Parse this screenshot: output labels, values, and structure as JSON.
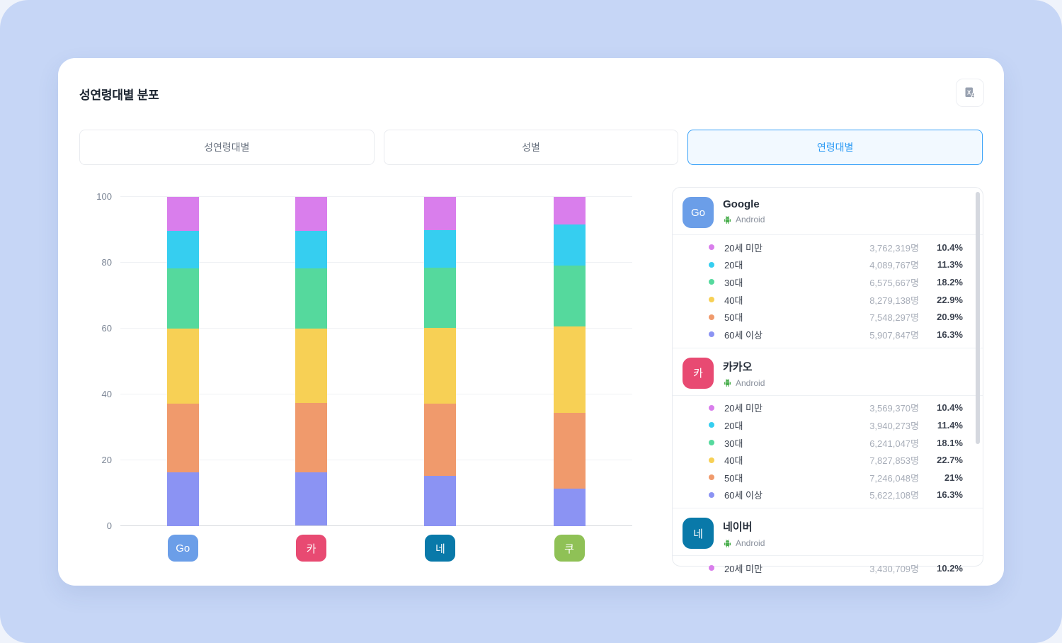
{
  "page": {
    "title": "성연령대별 분포"
  },
  "toolbar": {
    "export_icon": "excel-download-icon"
  },
  "tabs": [
    {
      "label": "성연령대별",
      "selected": false
    },
    {
      "label": "성별",
      "selected": false
    },
    {
      "label": "연령대별",
      "selected": true
    }
  ],
  "colors": {
    "accent_blue": "#38A1F8",
    "tab_selected_text": "#2B9AF4",
    "page_background": "#C6D6F6",
    "android_green": "#4CAF50"
  },
  "chart_data": {
    "type": "bar",
    "stacked": true,
    "title": "",
    "xlabel": "",
    "ylabel": "",
    "ylim": [
      0,
      100
    ],
    "yticks": [
      0,
      20,
      40,
      60,
      80,
      100
    ],
    "grid": true,
    "categories": [
      "Go",
      "카",
      "네",
      "쿠"
    ],
    "category_colors": [
      "#6B9EE8",
      "#E84A72",
      "#0979A9",
      "#8FC156"
    ],
    "age_groups": [
      "20세 미만",
      "20대",
      "30대",
      "40대",
      "50대",
      "60세 이상"
    ],
    "age_colors": [
      "#D97EEC",
      "#36CEF0",
      "#55D99D",
      "#F7D055",
      "#F09A6C",
      "#8B93F3"
    ],
    "series": [
      {
        "name": "Go",
        "values": [
          10.4,
          11.3,
          18.2,
          22.9,
          20.9,
          16.3
        ]
      },
      {
        "name": "카",
        "values": [
          10.4,
          11.4,
          18.1,
          22.7,
          21.0,
          16.3
        ]
      },
      {
        "name": "네",
        "values": [
          10.2,
          11.3,
          18.3,
          23.1,
          21.8,
          15.3
        ]
      },
      {
        "name": "쿠",
        "values": [
          8.4,
          12.4,
          18.5,
          26.2,
          23.1,
          11.4
        ]
      }
    ],
    "legend_position": "right-panel"
  },
  "panel": {
    "apps": [
      {
        "chip": "Go",
        "chip_color": "#6B9EE8",
        "name": "Google",
        "platform": "Android",
        "rows": [
          {
            "label": "20세 미만",
            "value": "3,762,319명",
            "pct": "10.4%"
          },
          {
            "label": "20대",
            "value": "4,089,767명",
            "pct": "11.3%"
          },
          {
            "label": "30대",
            "value": "6,575,667명",
            "pct": "18.2%"
          },
          {
            "label": "40대",
            "value": "8,279,138명",
            "pct": "22.9%"
          },
          {
            "label": "50대",
            "value": "7,548,297명",
            "pct": "20.9%"
          },
          {
            "label": "60세 이상",
            "value": "5,907,847명",
            "pct": "16.3%"
          }
        ]
      },
      {
        "chip": "카",
        "chip_color": "#E84A72",
        "name": "카카오",
        "platform": "Android",
        "rows": [
          {
            "label": "20세 미만",
            "value": "3,569,370명",
            "pct": "10.4%"
          },
          {
            "label": "20대",
            "value": "3,940,273명",
            "pct": "11.4%"
          },
          {
            "label": "30대",
            "value": "6,241,047명",
            "pct": "18.1%"
          },
          {
            "label": "40대",
            "value": "7,827,853명",
            "pct": "22.7%"
          },
          {
            "label": "50대",
            "value": "7,246,048명",
            "pct": "21%"
          },
          {
            "label": "60세 이상",
            "value": "5,622,108명",
            "pct": "16.3%"
          }
        ]
      },
      {
        "chip": "네",
        "chip_color": "#0979A9",
        "name": "네이버",
        "platform": "Android",
        "rows": [
          {
            "label": "20세 미만",
            "value": "3,430,709명",
            "pct": "10.2%"
          }
        ]
      }
    ]
  }
}
